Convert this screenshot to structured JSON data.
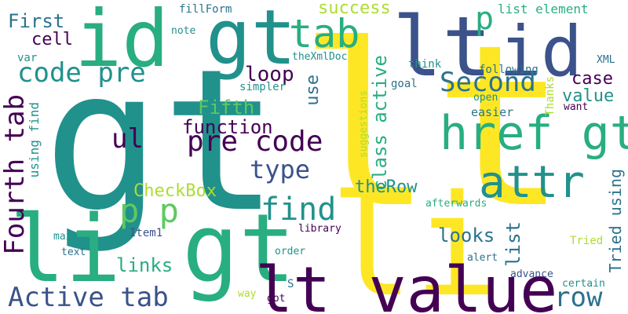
{
  "palette": {
    "background": "#ffffff",
    "dark_purple": "#440154",
    "indigo": "#3b528b",
    "blue": "#2c728e",
    "teal": "#21918c",
    "green": "#28ae80",
    "light_green": "#5ec962",
    "yellow_green": "#addc30",
    "yellow": "#fde725"
  },
  "words": [
    {
      "text": "gt"
    },
    {
      "text": "lt"
    },
    {
      "text": "li"
    },
    {
      "text": "gt"
    },
    {
      "text": "lt value"
    },
    {
      "text": "id"
    },
    {
      "text": "gt"
    },
    {
      "text": "lt"
    },
    {
      "text": "id"
    },
    {
      "text": "li"
    },
    {
      "text": "href gt"
    },
    {
      "text": "attr"
    },
    {
      "text": "tab"
    },
    {
      "text": "p p"
    },
    {
      "text": "find"
    },
    {
      "text": "Active tab"
    },
    {
      "text": "Fourth tab"
    },
    {
      "text": "code pre"
    },
    {
      "text": "pre code"
    },
    {
      "text": "Second"
    },
    {
      "text": "row"
    },
    {
      "text": "type"
    },
    {
      "text": "ul"
    },
    {
      "text": "p"
    },
    {
      "text": "loop"
    },
    {
      "text": "class active"
    },
    {
      "text": "function"
    },
    {
      "text": "CheckBox"
    },
    {
      "text": "theRow"
    },
    {
      "text": "looks"
    },
    {
      "text": "links"
    },
    {
      "text": "list"
    },
    {
      "text": "Fifth"
    },
    {
      "text": "case"
    },
    {
      "text": "value"
    },
    {
      "text": "success"
    },
    {
      "text": "First"
    },
    {
      "text": "cell"
    },
    {
      "text": "use"
    },
    {
      "text": "Tried using"
    },
    {
      "text": "list element"
    },
    {
      "text": "fillForm"
    },
    {
      "text": "note"
    },
    {
      "text": "theXmlDoc"
    },
    {
      "text": "var"
    },
    {
      "text": "using find"
    },
    {
      "text": "simpler"
    },
    {
      "text": "goal"
    },
    {
      "text": "following"
    },
    {
      "text": "think"
    },
    {
      "text": "XML"
    },
    {
      "text": "open"
    },
    {
      "text": "want"
    },
    {
      "text": "easier"
    },
    {
      "text": "Thanks"
    },
    {
      "text": "suggestions"
    },
    {
      "text": "afterwards"
    },
    {
      "text": "library"
    },
    {
      "text": "Item1"
    },
    {
      "text": "main"
    },
    {
      "text": "text"
    },
    {
      "text": "order"
    },
    {
      "text": "alert"
    },
    {
      "text": "Tried"
    },
    {
      "text": "advance"
    },
    {
      "text": "certain"
    },
    {
      "text": "way"
    },
    {
      "text": "got"
    },
    {
      "text": "S"
    }
  ]
}
